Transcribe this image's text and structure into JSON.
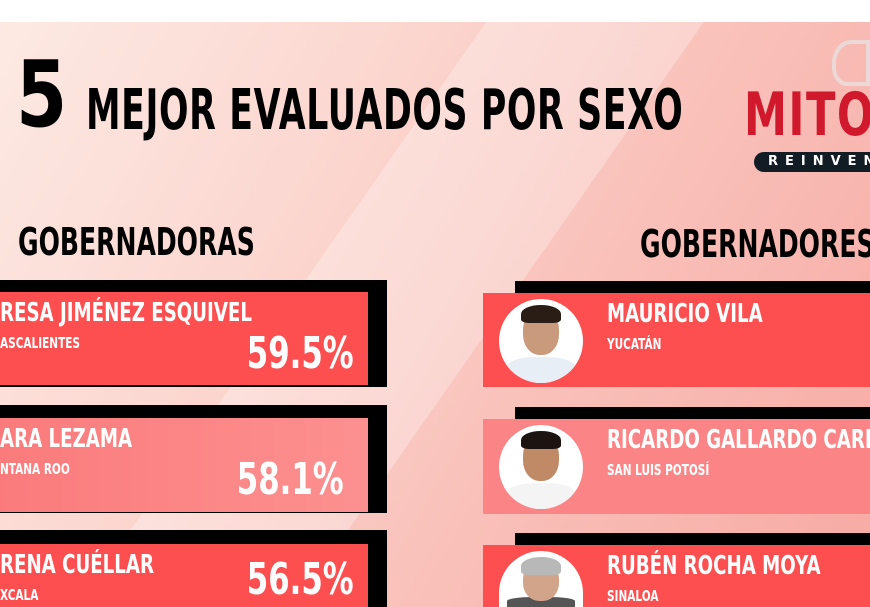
{
  "header": {
    "number": "5",
    "title": "MEJOR EVALUADOS POR SEXO"
  },
  "logo": {
    "text": "MITO",
    "tagline": "REINVENTI"
  },
  "colors": {
    "card_primary": "#fd4f50",
    "card_secondary": "#fb8586",
    "logo_red": "#d0192c",
    "bar": "#000000"
  },
  "women": {
    "heading": "GOBERNADORAS",
    "items": [
      {
        "name": "RESA JIMÉNEZ ESQUIVEL",
        "state": "ASCALIENTES",
        "pct": "59.5%"
      },
      {
        "name": "ARA LEZAMA",
        "state": "NTANA ROO",
        "pct": "58.1%"
      },
      {
        "name": "RENA CUÉLLAR",
        "state": "XCALA",
        "pct": "56.5%"
      }
    ]
  },
  "men": {
    "heading": "GOBERNADORES",
    "items": [
      {
        "name": "MAURICIO VILA",
        "state": "YUCATÁN"
      },
      {
        "name": "RICARDO GALLARDO CARDONA",
        "state": "SAN LUIS POTOSÍ"
      },
      {
        "name": "RUBÉN ROCHA MOYA",
        "state": "SINALOA"
      }
    ]
  }
}
